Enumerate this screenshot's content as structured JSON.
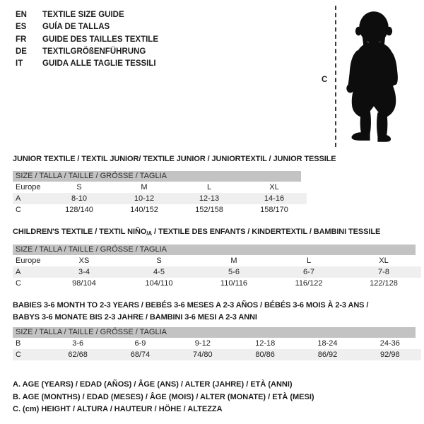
{
  "languages": {
    "items": [
      {
        "code": "EN",
        "label": "TEXTILE SIZE GUIDE"
      },
      {
        "code": "ES",
        "label": "GUÍA DE TALLAS"
      },
      {
        "code": "FR",
        "label": "GUIDE DES TAILLES TEXTILE"
      },
      {
        "code": "DE",
        "label": "TEXTILGRÖßENFÜHRUNG"
      },
      {
        "code": "IT",
        "label": "GUIDA ALLE TAGLIE TESSILI"
      }
    ]
  },
  "figure": {
    "height_label": "C",
    "silhouette": "baby-toddler"
  },
  "tables": [
    {
      "title_lines": [
        [
          {
            "t": "JUNIOR TEXTILE / TEXTIL JUNIOR/ TEXTILE JUNIOR / JUNIORTEXTIL / JUNIOR TESSILE"
          }
        ]
      ],
      "header": "SIZE / TALLA / TAILLE / GRÖSSE / TAGLIA",
      "rows": [
        {
          "label": "Europe",
          "shaded": false,
          "values": [
            "S",
            "M",
            "L",
            "XL"
          ]
        },
        {
          "label": "A",
          "shaded": true,
          "values": [
            "8-10",
            "10-12",
            "12-13",
            "14-16"
          ]
        },
        {
          "label": "C",
          "shaded": false,
          "values": [
            "128/140",
            "140/152",
            "152/158",
            "158/170"
          ]
        }
      ]
    },
    {
      "title_lines": [
        [
          {
            "t": "CHILDREN'S TEXTILE / TEXTIL NIÑO"
          },
          {
            "t": "/A",
            "sub": true
          },
          {
            "t": " / TEXTILE DES ENFANTS / KINDERTEXTIL / BAMBINI TESSILE"
          }
        ]
      ],
      "header": "SIZE / TALLA / TAILLE / GRÖSSE / TAGLIA",
      "rows": [
        {
          "label": "Europe",
          "shaded": false,
          "values": [
            "XS",
            "S",
            "M",
            "L",
            "XL"
          ]
        },
        {
          "label": "A",
          "shaded": true,
          "values": [
            "3-4",
            "4-5",
            "5-6",
            "6-7",
            "7-8"
          ]
        },
        {
          "label": "C",
          "shaded": false,
          "values": [
            "98/104",
            "104/110",
            "110/116",
            "116/122",
            "122/128"
          ]
        }
      ]
    },
    {
      "title_lines": [
        [
          {
            "t": "BABIES 3-6 MONTH TO 2-3 YEARS / BEBÉS 3-6 MESES A 2-3 AÑOS / BÉBÉS 3-6 MOIS À 2-3 ANS /"
          }
        ],
        [
          {
            "t": "BABYS 3-6 MONATE BIS 2-3 JAHRE / BAMBINI 3-6 MESI A 2-3 ANNI"
          }
        ]
      ],
      "header": "SIZE / TALLA / TAILLE / GRÖSSE / TAGLIA",
      "rows": [
        {
          "label": "B",
          "shaded": false,
          "values": [
            "3-6",
            "6-9",
            "9-12",
            "12-18",
            "18-24",
            "24-36"
          ]
        },
        {
          "label": "C",
          "shaded": true,
          "values": [
            "62/68",
            "68/74",
            "74/80",
            "80/86",
            "86/92",
            "92/98"
          ]
        }
      ]
    }
  ],
  "legend": {
    "lines": [
      "A. AGE (YEARS) / EDAD (AÑOS) / ÂGE (ANS) / ALTER (JAHRE) / ETÀ (ANNI)",
      "B. AGE (MONTHS) / EDAD (MESES) / ÂGE (MOIS) / ALTER (MONATE) / ETÀ (MESI)",
      "C. (cm) HEIGHT / ALTURA / HAUTEUR / HÖHE / ALTEZZA"
    ]
  },
  "colors": {
    "header_bar": "#c3c3c3",
    "row_shaded": "#efefef",
    "text": "#1d1d1d",
    "silhouette": "#0d0d0d"
  }
}
